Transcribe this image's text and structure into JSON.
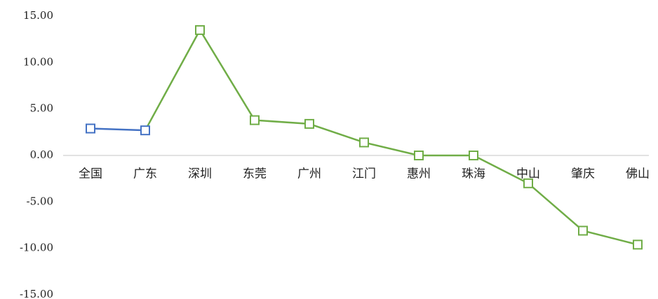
{
  "chart_data": {
    "type": "line",
    "categories": [
      "全国",
      "广东",
      "深圳",
      "东莞",
      "广州",
      "江门",
      "惠州",
      "珠海",
      "中山",
      "肇庆",
      "佛山"
    ],
    "series": [
      {
        "values": [
          2.9,
          2.7,
          13.5,
          3.8,
          3.4,
          1.4,
          0.0,
          0.0,
          -3.0,
          -8.1,
          -9.6
        ],
        "colors": [
          "#4472c4",
          "#4472c4",
          "#70ad47",
          "#70ad47",
          "#70ad47",
          "#70ad47",
          "#70ad47",
          "#70ad47",
          "#70ad47",
          "#70ad47",
          "#70ad47"
        ]
      }
    ],
    "ylim": [
      -15,
      15
    ],
    "yticks": [
      {
        "value": 15,
        "label": "15.00"
      },
      {
        "value": 10,
        "label": "10.00"
      },
      {
        "value": 5,
        "label": "5.00"
      },
      {
        "value": 0,
        "label": "0.00"
      },
      {
        "value": -5,
        "label": "-5.00"
      },
      {
        "value": -10,
        "label": "-10.00"
      },
      {
        "value": -15,
        "label": "-15.00"
      }
    ],
    "grid": false
  }
}
